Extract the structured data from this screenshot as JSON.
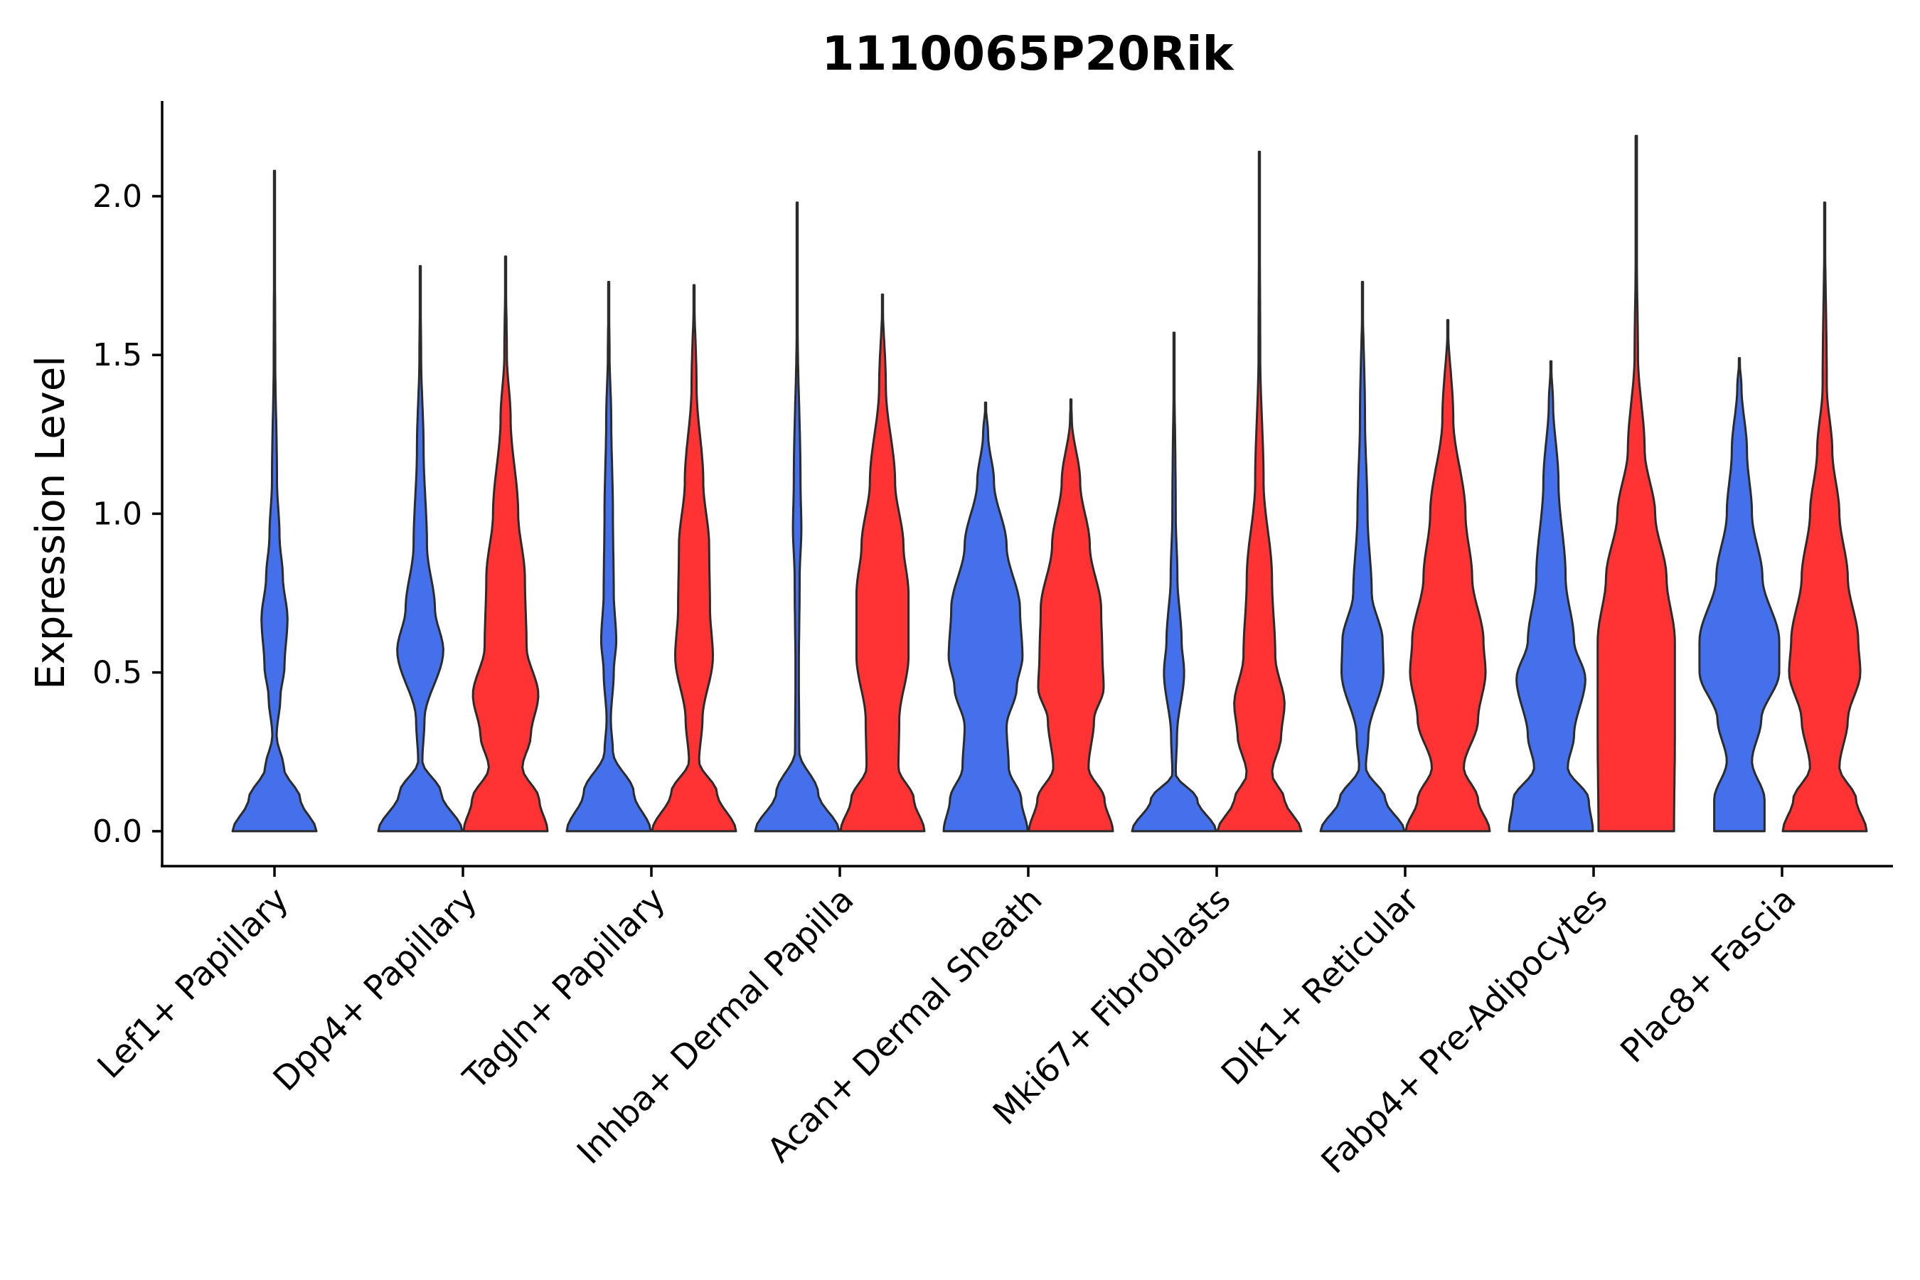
{
  "chart_data": {
    "type": "violin",
    "title": "1110065P20Rik",
    "xlabel": "",
    "ylabel": "Expression Level",
    "ylim": [
      -0.11,
      2.3
    ],
    "yticks": [
      0.0,
      0.5,
      1.0,
      1.5,
      2.0
    ],
    "ytick_labels": [
      "0.0",
      "0.5",
      "1.0",
      "1.5",
      "2.0"
    ],
    "categories": [
      "Lef1+ Papillary",
      "Dpp4+ Papillary",
      "Tagln+ Papillary",
      "Inhba+ Dermal Papilla",
      "Acan+ Dermal Sheath",
      "Mki67+ Fibroblasts",
      "Dlk1+ Reticular",
      "Fabp4+ Pre-Adipocytes",
      "Plac8+ Fascia"
    ],
    "colors": {
      "group1": "#4470EB",
      "group2": "#FF3333",
      "outline": "#2b2b2b"
    },
    "series": [
      {
        "name": "group1",
        "color": "#4470EB",
        "violins": [
          {
            "category": "Lef1+ Papillary",
            "max": 2.08,
            "profile": [
              [
                0,
                1.0
              ],
              [
                0.1,
                0.62
              ],
              [
                0.2,
                0.22
              ],
              [
                0.3,
                0.05
              ],
              [
                0.42,
                0.14
              ],
              [
                0.52,
                0.24
              ],
              [
                0.67,
                0.31
              ],
              [
                0.8,
                0.2
              ],
              [
                0.93,
                0.12
              ],
              [
                1.1,
                0.06
              ],
              [
                1.5,
                0.018
              ],
              [
                2.08,
                0
              ]
            ]
          },
          {
            "category": "Dpp4+ Papillary",
            "max": 1.78,
            "profile": [
              [
                0,
                1.0
              ],
              [
                0.12,
                0.5
              ],
              [
                0.22,
                0.05
              ],
              [
                0.35,
                0.1
              ],
              [
                0.57,
                0.55
              ],
              [
                0.7,
                0.35
              ],
              [
                0.9,
                0.16
              ],
              [
                1.2,
                0.08
              ],
              [
                1.5,
                0.02
              ],
              [
                1.78,
                0
              ]
            ]
          },
          {
            "category": "Tagln+ Papillary",
            "max": 1.73,
            "profile": [
              [
                0,
                1.0
              ],
              [
                0.12,
                0.6
              ],
              [
                0.25,
                0.1
              ],
              [
                0.35,
                0.05
              ],
              [
                0.5,
                0.12
              ],
              [
                0.6,
                0.18
              ],
              [
                0.75,
                0.12
              ],
              [
                1.0,
                0.1
              ],
              [
                1.3,
                0.06
              ],
              [
                1.5,
                0.02
              ],
              [
                1.73,
                0
              ]
            ]
          },
          {
            "category": "Inhba+ Dermal Papilla",
            "max": 1.98,
            "profile": [
              [
                0,
                1.0
              ],
              [
                0.12,
                0.5
              ],
              [
                0.25,
                0.05
              ],
              [
                0.5,
                0.04
              ],
              [
                0.8,
                0.06
              ],
              [
                0.95,
                0.1
              ],
              [
                1.1,
                0.08
              ],
              [
                1.6,
                0.01
              ],
              [
                1.98,
                0
              ]
            ]
          },
          {
            "category": "Acan+ Dermal Sheath",
            "max": 1.35,
            "profile": [
              [
                0,
                1.0
              ],
              [
                0.1,
                0.85
              ],
              [
                0.2,
                0.55
              ],
              [
                0.33,
                0.5
              ],
              [
                0.45,
                0.74
              ],
              [
                0.55,
                0.88
              ],
              [
                0.7,
                0.82
              ],
              [
                0.9,
                0.5
              ],
              [
                1.1,
                0.2
              ],
              [
                1.25,
                0.06
              ],
              [
                1.35,
                0
              ]
            ]
          },
          {
            "category": "Mki67+ Fibroblasts",
            "max": 1.57,
            "profile": [
              [
                0,
                1.0
              ],
              [
                0.1,
                0.55
              ],
              [
                0.18,
                0.04
              ],
              [
                0.3,
                0.07
              ],
              [
                0.5,
                0.24
              ],
              [
                0.6,
                0.18
              ],
              [
                0.8,
                0.08
              ],
              [
                1.0,
                0.04
              ],
              [
                1.57,
                0
              ]
            ]
          },
          {
            "category": "Dlk1+ Reticular",
            "max": 1.73,
            "profile": [
              [
                0,
                1.0
              ],
              [
                0.1,
                0.55
              ],
              [
                0.2,
                0.08
              ],
              [
                0.3,
                0.14
              ],
              [
                0.5,
                0.5
              ],
              [
                0.6,
                0.48
              ],
              [
                0.75,
                0.22
              ],
              [
                1.0,
                0.12
              ],
              [
                1.3,
                0.06
              ],
              [
                1.73,
                0
              ]
            ]
          },
          {
            "category": "Fabp4+ Pre-Adipocytes",
            "max": 1.48,
            "profile": [
              [
                0,
                1.0
              ],
              [
                0.1,
                0.9
              ],
              [
                0.2,
                0.4
              ],
              [
                0.3,
                0.55
              ],
              [
                0.48,
                0.82
              ],
              [
                0.6,
                0.55
              ],
              [
                0.8,
                0.35
              ],
              [
                1.1,
                0.18
              ],
              [
                1.35,
                0.05
              ],
              [
                1.48,
                0
              ]
            ]
          },
          {
            "category": "Plac8+ Fascia",
            "max": 1.49,
            "profile": [
              [
                0,
                0.6
              ],
              [
                0.1,
                0.6
              ],
              [
                0.22,
                0.3
              ],
              [
                0.35,
                0.52
              ],
              [
                0.5,
                0.95
              ],
              [
                0.6,
                0.95
              ],
              [
                0.8,
                0.55
              ],
              [
                1.0,
                0.3
              ],
              [
                1.2,
                0.18
              ],
              [
                1.4,
                0.05
              ],
              [
                1.49,
                0
              ]
            ]
          }
        ]
      },
      {
        "name": "group2",
        "color": "#FF3333",
        "violins": [
          {
            "category": "Dpp4+ Papillary",
            "max": 1.81,
            "profile": [
              [
                0,
                1.0
              ],
              [
                0.1,
                0.8
              ],
              [
                0.2,
                0.4
              ],
              [
                0.3,
                0.6
              ],
              [
                0.43,
                0.78
              ],
              [
                0.58,
                0.5
              ],
              [
                0.8,
                0.46
              ],
              [
                1.0,
                0.3
              ],
              [
                1.3,
                0.12
              ],
              [
                1.5,
                0.03
              ],
              [
                1.81,
                0
              ]
            ]
          },
          {
            "category": "Tagln+ Papillary",
            "max": 1.72,
            "profile": [
              [
                0,
                1.0
              ],
              [
                0.12,
                0.55
              ],
              [
                0.22,
                0.12
              ],
              [
                0.35,
                0.2
              ],
              [
                0.55,
                0.45
              ],
              [
                0.7,
                0.38
              ],
              [
                0.9,
                0.36
              ],
              [
                1.1,
                0.22
              ],
              [
                1.4,
                0.06
              ],
              [
                1.72,
                0
              ]
            ]
          },
          {
            "category": "Inhba+ Dermal Papilla",
            "max": 1.69,
            "profile": [
              [
                0,
                1.0
              ],
              [
                0.1,
                0.75
              ],
              [
                0.2,
                0.38
              ],
              [
                0.35,
                0.4
              ],
              [
                0.55,
                0.62
              ],
              [
                0.75,
                0.62
              ],
              [
                0.9,
                0.5
              ],
              [
                1.1,
                0.3
              ],
              [
                1.4,
                0.08
              ],
              [
                1.69,
                0
              ]
            ]
          },
          {
            "category": "Acan+ Dermal Sheath",
            "max": 1.36,
            "profile": [
              [
                0,
                1.0
              ],
              [
                0.1,
                0.8
              ],
              [
                0.2,
                0.42
              ],
              [
                0.35,
                0.55
              ],
              [
                0.45,
                0.78
              ],
              [
                0.55,
                0.75
              ],
              [
                0.7,
                0.72
              ],
              [
                0.9,
                0.45
              ],
              [
                1.1,
                0.22
              ],
              [
                1.3,
                0.02
              ],
              [
                1.36,
                0
              ]
            ]
          },
          {
            "category": "Mki67+ Fibroblasts",
            "max": 2.14,
            "profile": [
              [
                0,
                1.0
              ],
              [
                0.1,
                0.6
              ],
              [
                0.18,
                0.3
              ],
              [
                0.3,
                0.52
              ],
              [
                0.4,
                0.6
              ],
              [
                0.55,
                0.38
              ],
              [
                0.8,
                0.3
              ],
              [
                1.1,
                0.1
              ],
              [
                1.5,
                0.02
              ],
              [
                2.14,
                0
              ]
            ]
          },
          {
            "category": "Dlk1+ Reticular",
            "max": 1.61,
            "profile": [
              [
                0,
                1.0
              ],
              [
                0.1,
                0.72
              ],
              [
                0.2,
                0.38
              ],
              [
                0.35,
                0.72
              ],
              [
                0.5,
                0.9
              ],
              [
                0.6,
                0.85
              ],
              [
                0.8,
                0.58
              ],
              [
                1.0,
                0.42
              ],
              [
                1.3,
                0.13
              ],
              [
                1.61,
                0
              ]
            ]
          },
          {
            "category": "Fabp4+ Pre-Adipocytes",
            "max": 2.19,
            "profile": [
              [
                0,
                0.9
              ],
              [
                0.3,
                0.92
              ],
              [
                0.6,
                0.92
              ],
              [
                0.8,
                0.72
              ],
              [
                1.0,
                0.45
              ],
              [
                1.2,
                0.2
              ],
              [
                1.5,
                0.04
              ],
              [
                1.8,
                0.015
              ],
              [
                2.19,
                0.015
              ]
            ]
          },
          {
            "category": "Plac8+ Fascia",
            "max": 1.98,
            "profile": [
              [
                0,
                1.0
              ],
              [
                0.1,
                0.75
              ],
              [
                0.2,
                0.35
              ],
              [
                0.35,
                0.55
              ],
              [
                0.5,
                0.85
              ],
              [
                0.6,
                0.8
              ],
              [
                0.8,
                0.55
              ],
              [
                1.0,
                0.35
              ],
              [
                1.2,
                0.18
              ],
              [
                1.4,
                0.05
              ],
              [
                1.98,
                0
              ]
            ]
          }
        ]
      }
    ]
  }
}
